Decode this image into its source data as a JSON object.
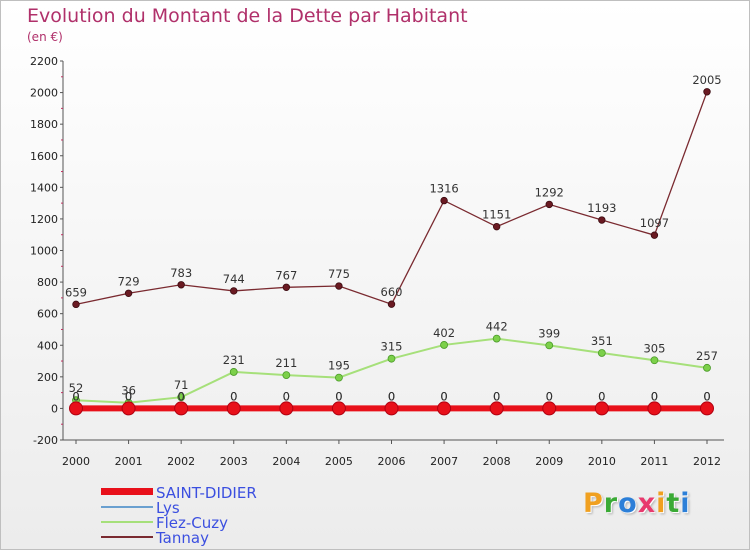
{
  "header": {
    "title": "Evolution du Montant de la Dette par Habitant",
    "subtitle": "(en €)"
  },
  "logo": {
    "text": "Proxiti",
    "colors": [
      "#f0a020",
      "#3aaa35",
      "#2c7fd8",
      "#e83a6e",
      "#f0a020",
      "#3aaa35",
      "#2c7fd8"
    ]
  },
  "chart_data": {
    "type": "line",
    "title": "Evolution du Montant de la Dette par Habitant",
    "subtitle": "(en €)",
    "xlabel": "",
    "ylabel": "",
    "ylim": [
      -200,
      2200
    ],
    "yticks": [
      -200,
      0,
      200,
      400,
      600,
      800,
      1000,
      1200,
      1400,
      1600,
      1800,
      2000,
      2200
    ],
    "grid": false,
    "legend_position": "bottom-left",
    "x": [
      "2000",
      "2001",
      "2002",
      "2003",
      "2004",
      "2005",
      "2006",
      "2007",
      "2008",
      "2009",
      "2010",
      "2011",
      "2012"
    ],
    "series": [
      {
        "name": "SAINT-DIDIER",
        "color": "#e8101a",
        "values": [
          0,
          0,
          0,
          0,
          0,
          0,
          0,
          0,
          0,
          0,
          0,
          0,
          0
        ]
      },
      {
        "name": "Lys",
        "color": "#6aa0d0",
        "values": [
          0,
          0,
          0,
          0,
          0,
          0,
          0,
          0,
          0,
          0,
          0,
          0,
          0
        ]
      },
      {
        "name": "Flez-Cuzy",
        "color": "#a6e07a",
        "values": [
          52,
          36,
          71,
          231,
          211,
          195,
          315,
          402,
          442,
          399,
          351,
          305,
          257
        ]
      },
      {
        "name": "Tannay",
        "color": "#7a2a30",
        "values": [
          659,
          729,
          783,
          744,
          767,
          775,
          660,
          1316,
          1151,
          1292,
          1193,
          1097,
          2005
        ]
      }
    ],
    "value_labels": {
      "SAINT-DIDIER": [
        "0",
        "0",
        "0",
        "0",
        "0",
        "0",
        "0",
        "0",
        "0",
        "0",
        "0",
        "0",
        "0"
      ],
      "Lys": [
        "0",
        "0",
        "0",
        "0",
        "0",
        "0",
        "0",
        "0",
        "0",
        "0",
        "0",
        "0",
        "0"
      ],
      "Flez-Cuzy": [
        "52",
        "36",
        "71",
        "231",
        "211",
        "195",
        "315",
        "402",
        "442",
        "399",
        "351",
        "305",
        "257"
      ],
      "Tannay": [
        "659",
        "729",
        "783",
        "744",
        "767",
        "775",
        "660",
        "1316",
        "1151",
        "1292",
        "1193",
        "1097",
        "2005"
      ]
    }
  }
}
